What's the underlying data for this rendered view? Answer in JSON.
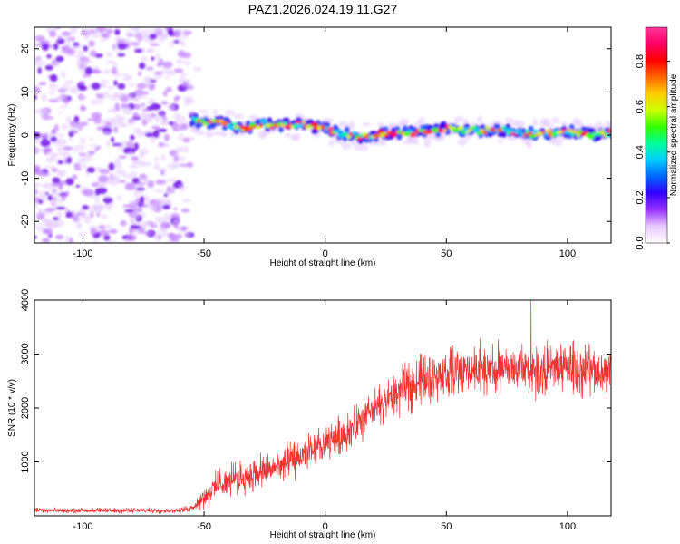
{
  "title": "PAZ1.2026.024.19.11.G27",
  "chart_data": [
    {
      "type": "heatmap",
      "title": "PAZ1.2026.024.19.11.G27",
      "xlabel": "Height of straight line (km)",
      "ylabel": "Frequency (Hz)",
      "xlim": [
        -120,
        118
      ],
      "ylim": [
        -25,
        25
      ],
      "xticks": [
        -100,
        -50,
        0,
        50,
        100
      ],
      "xtick_labels": [
        "-100",
        "-50",
        "0",
        "50",
        "100"
      ],
      "yticks": [
        -20,
        -10,
        0,
        10,
        20
      ],
      "ytick_labels": [
        "-20",
        "-10",
        "0",
        "10",
        "20"
      ],
      "noise_region_x": [
        -120,
        -52
      ],
      "signal_region_x": [
        -55,
        118
      ],
      "signal_frequency_hz": 0,
      "colorbar": {
        "label": "Normalized spectral amplitude",
        "range": [
          0,
          0.95
        ],
        "ticks": [
          0.0,
          0.2,
          0.4,
          0.6,
          0.8
        ],
        "tick_labels": [
          "0.0",
          "0.2",
          "0.4",
          "0.6",
          "0.8"
        ],
        "colors": [
          "#ffffff",
          "#e8c8ff",
          "#9933ff",
          "#3300ff",
          "#0066ff",
          "#00ccff",
          "#00ff99",
          "#33ff00",
          "#ccff00",
          "#ffcc00",
          "#ff6600",
          "#ff0000",
          "#ff0066",
          "#ff3399"
        ]
      },
      "signal_track": [
        {
          "x": -55,
          "y": 3.5
        },
        {
          "x": -50,
          "y": 3
        },
        {
          "x": -45,
          "y": 3.2
        },
        {
          "x": -40,
          "y": 2.5
        },
        {
          "x": -35,
          "y": 1.5
        },
        {
          "x": -30,
          "y": 1.8
        },
        {
          "x": -25,
          "y": 2.8
        },
        {
          "x": -20,
          "y": 2
        },
        {
          "x": -15,
          "y": 2.3
        },
        {
          "x": -10,
          "y": 2.6
        },
        {
          "x": -5,
          "y": 2
        },
        {
          "x": 0,
          "y": 1.5
        },
        {
          "x": 5,
          "y": 0.5
        },
        {
          "x": 10,
          "y": 0.2
        },
        {
          "x": 15,
          "y": -0.5
        },
        {
          "x": 20,
          "y": 0
        },
        {
          "x": 25,
          "y": 0.3
        },
        {
          "x": 30,
          "y": 0.5
        },
        {
          "x": 35,
          "y": 0.6
        },
        {
          "x": 40,
          "y": 0.8
        },
        {
          "x": 45,
          "y": 1
        },
        {
          "x": 50,
          "y": 1.5
        },
        {
          "x": 55,
          "y": 1
        },
        {
          "x": 60,
          "y": 1.5
        },
        {
          "x": 65,
          "y": 0.8
        },
        {
          "x": 70,
          "y": 1.6
        },
        {
          "x": 75,
          "y": 1
        },
        {
          "x": 80,
          "y": 0.6
        },
        {
          "x": 85,
          "y": 0.3
        },
        {
          "x": 90,
          "y": 0.2
        },
        {
          "x": 95,
          "y": 0.5
        },
        {
          "x": 100,
          "y": 1
        },
        {
          "x": 105,
          "y": 0.3
        },
        {
          "x": 110,
          "y": 0.1
        },
        {
          "x": 115,
          "y": 0.5
        }
      ]
    },
    {
      "type": "line",
      "xlabel": "Height of straight line (km)",
      "ylabel": "SNR (10 * v/v)",
      "xlim": [
        -120,
        118
      ],
      "ylim": [
        0,
        4000
      ],
      "xticks": [
        -100,
        -50,
        0,
        50,
        100
      ],
      "xtick_labels": [
        "-100",
        "-50",
        "0",
        "50",
        "100"
      ],
      "yticks": [
        1000,
        2000,
        3000,
        4000
      ],
      "ytick_labels": [
        "1000",
        "2000",
        "3000",
        "4000"
      ],
      "color": "#ee3333",
      "envelope": {
        "x": [
          -120,
          -100,
          -80,
          -60,
          -55,
          -50,
          -45,
          -40,
          -30,
          -20,
          -10,
          0,
          10,
          20,
          30,
          40,
          50,
          60,
          70,
          80,
          90,
          100,
          110,
          118
        ],
        "mean": [
          100,
          100,
          100,
          100,
          150,
          350,
          550,
          650,
          750,
          900,
          1100,
          1300,
          1600,
          1950,
          2300,
          2550,
          2650,
          2700,
          2700,
          2750,
          2700,
          2750,
          2700,
          2700
        ],
        "amp": [
          60,
          60,
          60,
          60,
          90,
          250,
          350,
          380,
          400,
          420,
          450,
          480,
          500,
          520,
          550,
          600,
          650,
          650,
          650,
          650,
          650,
          650,
          650,
          650
        ]
      },
      "peak": {
        "x": 85,
        "y": 4000
      }
    }
  ]
}
